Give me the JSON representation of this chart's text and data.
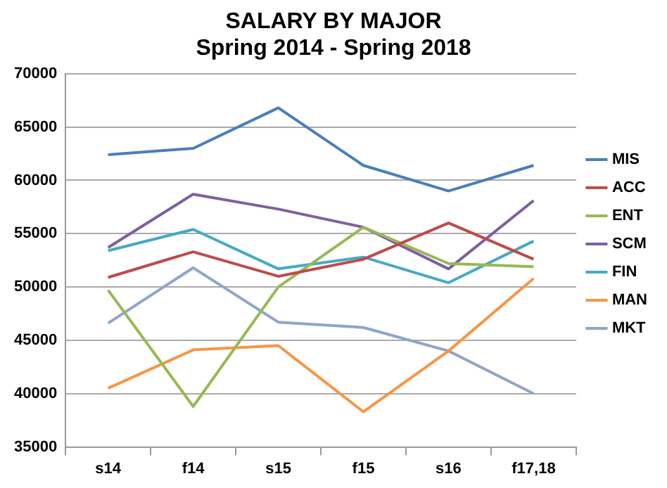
{
  "chart_data": {
    "type": "line",
    "title": "SALARY BY MAJOR",
    "subtitle": "Spring 2014 - Spring 2018",
    "categories": [
      "s14",
      "f14",
      "s15",
      "f15",
      "s16",
      "f17,18"
    ],
    "ylim": [
      35000,
      70000
    ],
    "yticks": [
      35000,
      40000,
      45000,
      50000,
      55000,
      60000,
      65000,
      70000
    ],
    "grid": "y",
    "legend": "right",
    "marker": "none",
    "line_style": "solid",
    "series": [
      {
        "name": "MIS",
        "color": "#4a7ebb",
        "values": [
          62400,
          63000,
          66800,
          61400,
          59000,
          61400
        ]
      },
      {
        "name": "ACC",
        "color": "#be4b48",
        "values": [
          50900,
          53300,
          51000,
          52600,
          56000,
          52600
        ]
      },
      {
        "name": "ENT",
        "color": "#98b954",
        "values": [
          49700,
          38800,
          50000,
          55600,
          52200,
          51900
        ]
      },
      {
        "name": "SCM",
        "color": "#7d60a0",
        "values": [
          53700,
          58700,
          57300,
          55600,
          51700,
          58100
        ]
      },
      {
        "name": "FIN",
        "color": "#46aac5",
        "values": [
          53400,
          55400,
          51700,
          52800,
          50400,
          54300
        ]
      },
      {
        "name": "MAN",
        "color": "#f79646",
        "values": [
          40500,
          44100,
          44500,
          38300,
          44000,
          50800
        ]
      },
      {
        "name": "MKT",
        "color": "#8ea5cb",
        "values": [
          46600,
          51800,
          46700,
          46200,
          44000,
          40000
        ]
      }
    ]
  }
}
